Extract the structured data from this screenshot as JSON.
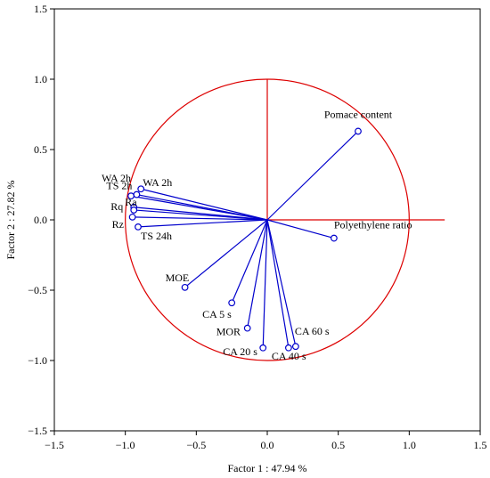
{
  "chart_data": {
    "type": "scatter",
    "subtype": "pca-correlation-circle",
    "xlabel": "Factor 1 : 47.94 %",
    "ylabel": "Factor 2 : 27.82 %",
    "xlim": [
      -1.5,
      1.5
    ],
    "ylim": [
      -1.5,
      1.5
    ],
    "xticks": [
      "−1.5",
      "−1.0",
      "−0.5",
      "0.0",
      "0.5",
      "1.0",
      "1.5"
    ],
    "yticks": [
      "1.5",
      "1.0",
      "0.5",
      "0.0",
      "−0.5",
      "−1.0",
      "−1.5"
    ],
    "grid": false,
    "circle_radius": 1.0,
    "reference_axes": {
      "x_range": [
        0,
        1.25
      ],
      "y_range": [
        0,
        1.0
      ]
    },
    "colors": {
      "vectors": "#0000cc",
      "circle": "#dd0000",
      "frame": "#000000"
    },
    "points": [
      {
        "label": "Pomace content",
        "x": 0.64,
        "y": 0.63
      },
      {
        "label": "Polyethylene ratio",
        "x": 0.47,
        "y": -0.13
      },
      {
        "label": "WA 2h",
        "x": -0.96,
        "y": 0.17
      },
      {
        "label": "WA 2h",
        "x": -0.89,
        "y": 0.22
      },
      {
        "label": "TS 2h",
        "x": -0.92,
        "y": 0.18
      },
      {
        "label": "Ra",
        "x": -0.94,
        "y": 0.09
      },
      {
        "label": "Rq",
        "x": -0.94,
        "y": 0.07
      },
      {
        "label": "Rz",
        "x": -0.95,
        "y": 0.02
      },
      {
        "label": "TS 24h",
        "x": -0.91,
        "y": -0.05
      },
      {
        "label": "MOE",
        "x": -0.58,
        "y": -0.48
      },
      {
        "label": "CA 5 s",
        "x": -0.25,
        "y": -0.59
      },
      {
        "label": "MOR",
        "x": -0.14,
        "y": -0.77
      },
      {
        "label": "CA 20 s",
        "x": -0.03,
        "y": -0.91
      },
      {
        "label": "CA 40 s",
        "x": 0.15,
        "y": -0.91
      },
      {
        "label": "CA 60 s",
        "x": 0.2,
        "y": -0.9
      }
    ]
  }
}
